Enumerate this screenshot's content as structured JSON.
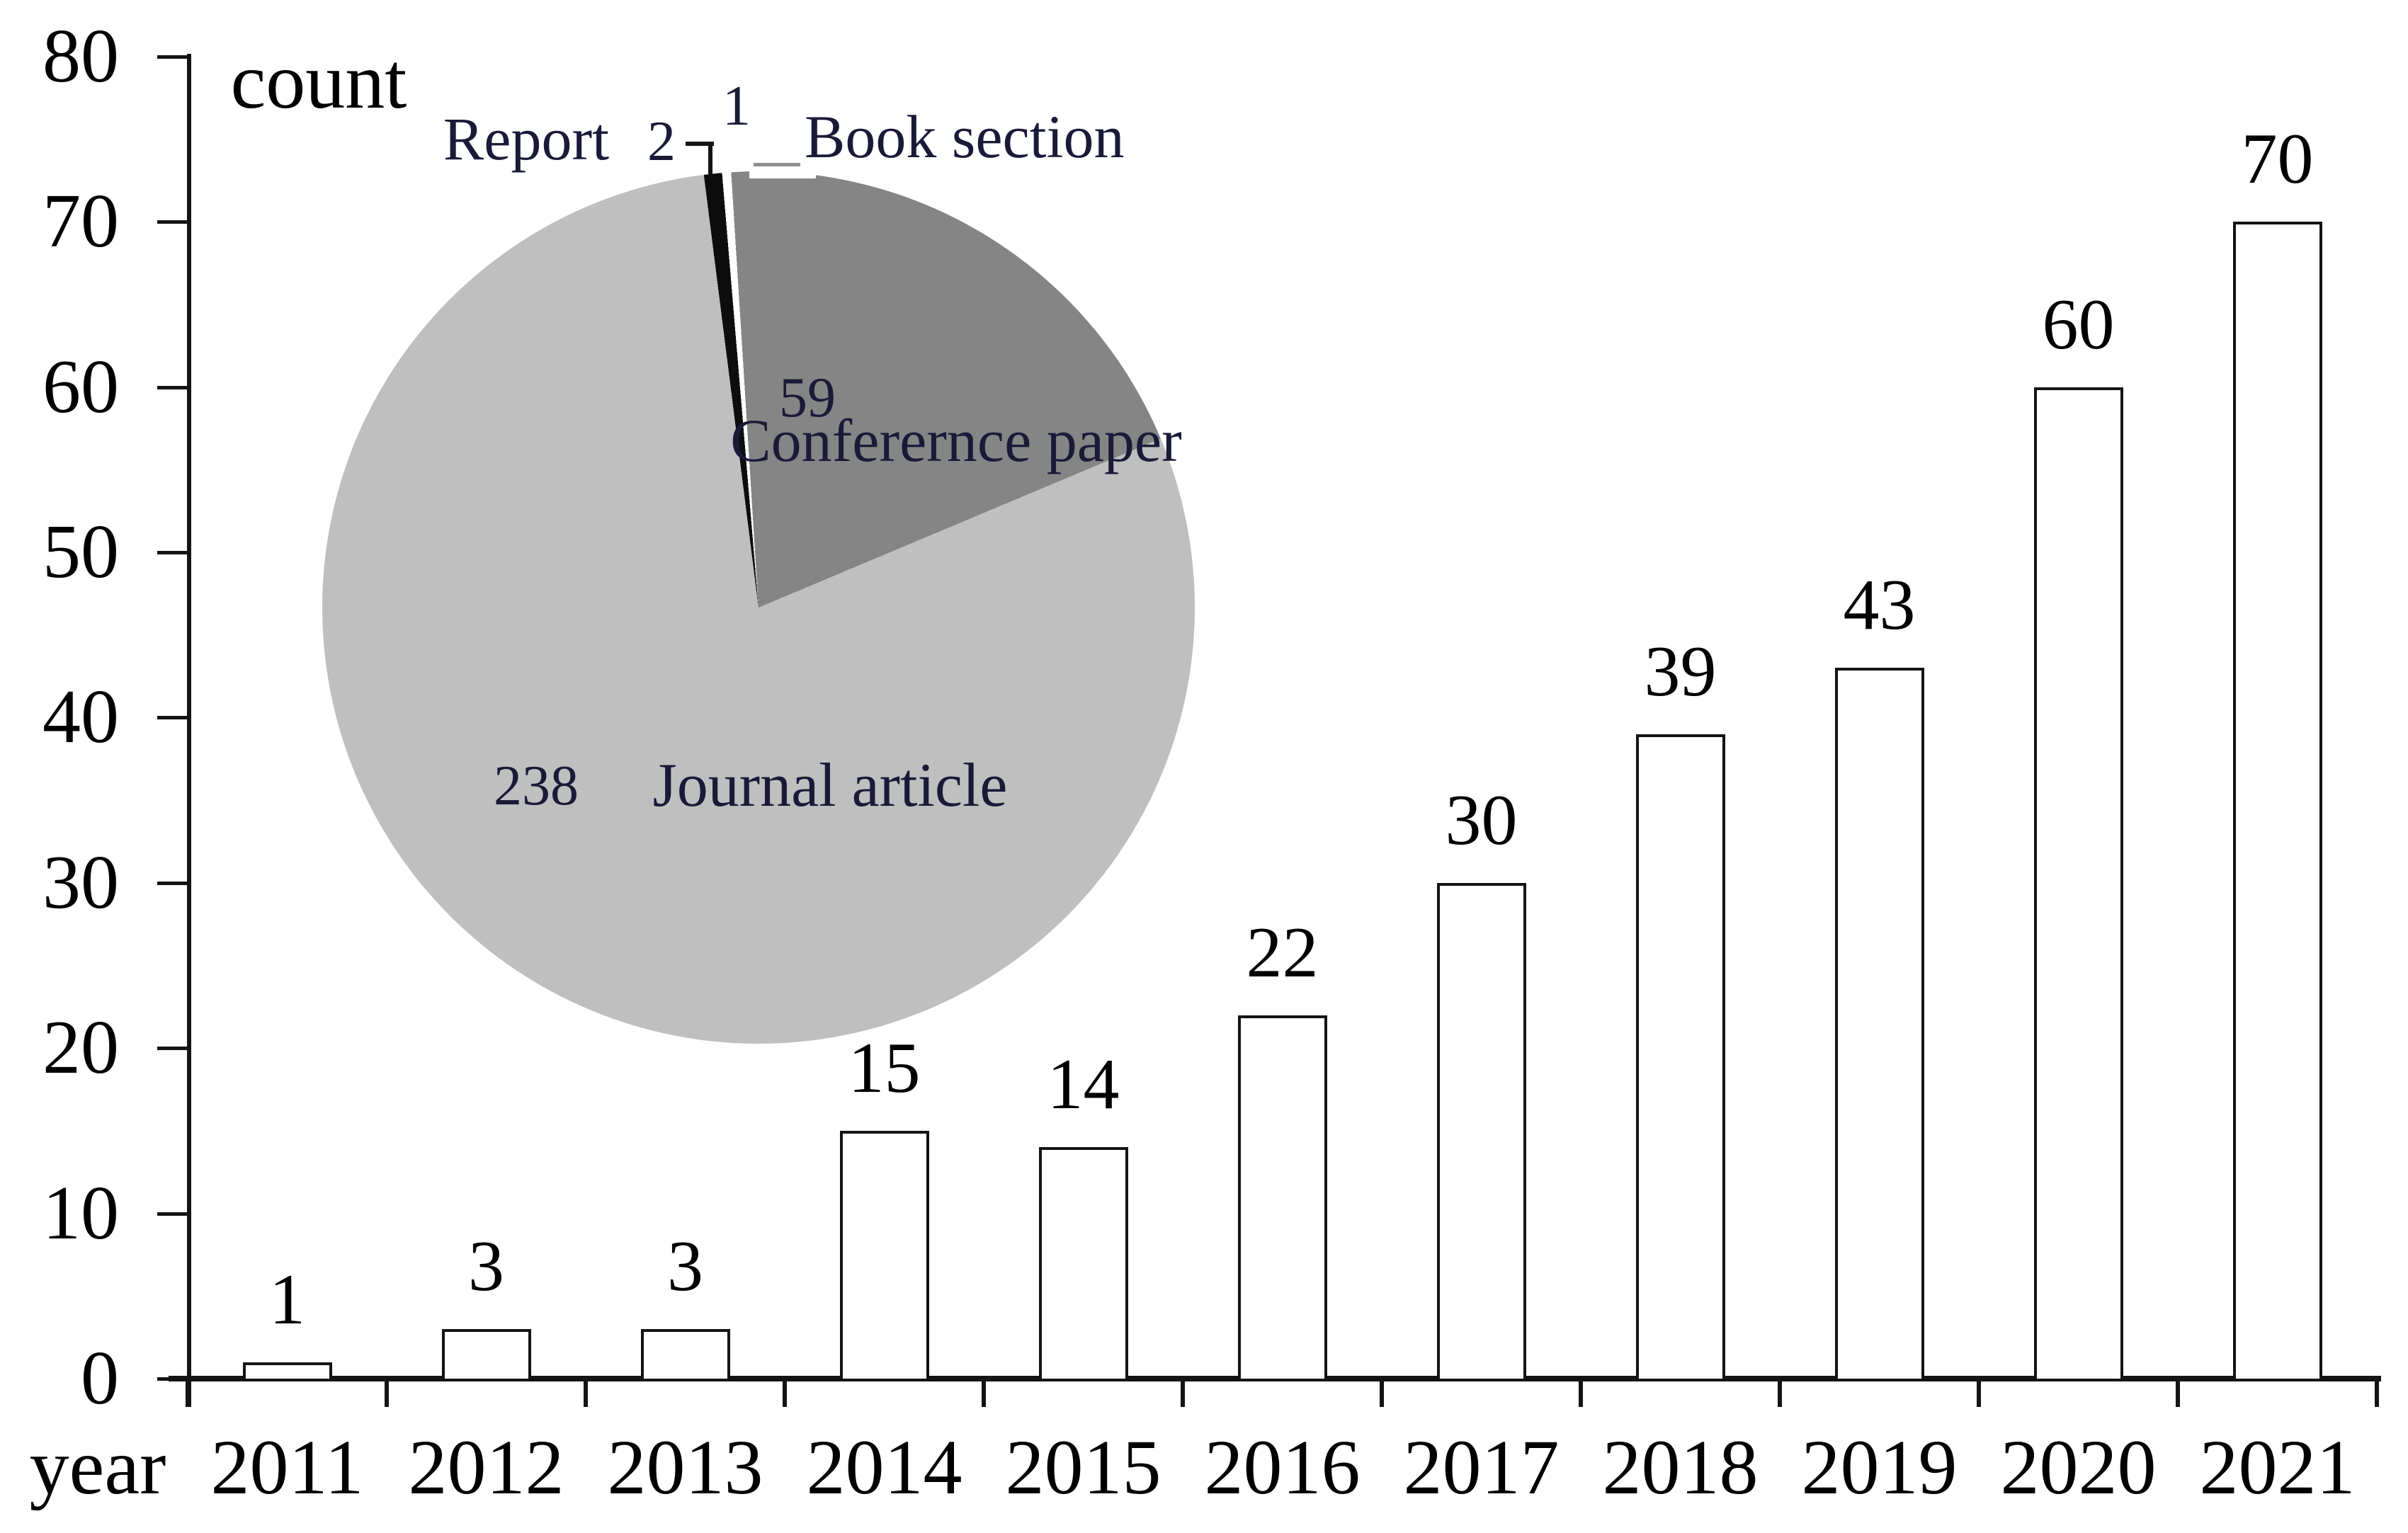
{
  "figure": {
    "y_axis_title": "count",
    "x_axis_title": "year"
  },
  "chart_data": [
    {
      "type": "bar",
      "title": "count",
      "xlabel": "year",
      "ylabel": "count",
      "categories": [
        "2011",
        "2012",
        "2013",
        "2014",
        "2015",
        "2016",
        "2017",
        "2018",
        "2019",
        "2020",
        "2021"
      ],
      "values": [
        1,
        3,
        3,
        15,
        14,
        22,
        30,
        39,
        43,
        60,
        70
      ],
      "ylim": [
        0,
        80
      ],
      "yticks": [
        0,
        10,
        20,
        30,
        40,
        50,
        60,
        70,
        80
      ],
      "grid": false,
      "legend_position": "none",
      "bar_fill": "#ffffff",
      "bar_border": "#141414"
    },
    {
      "type": "pie",
      "title": "",
      "legend_position": "labels-on-chart",
      "slices": [
        {
          "label": "Journal article",
          "value": 238,
          "color": "#bfbfbf"
        },
        {
          "label": "Conferernce paper",
          "value": 59,
          "color": "#858585"
        },
        {
          "label": "Report",
          "value": 2,
          "color": "#0d0d0d"
        },
        {
          "label": "Book section",
          "value": 1,
          "color": "#ffffff"
        }
      ]
    }
  ]
}
